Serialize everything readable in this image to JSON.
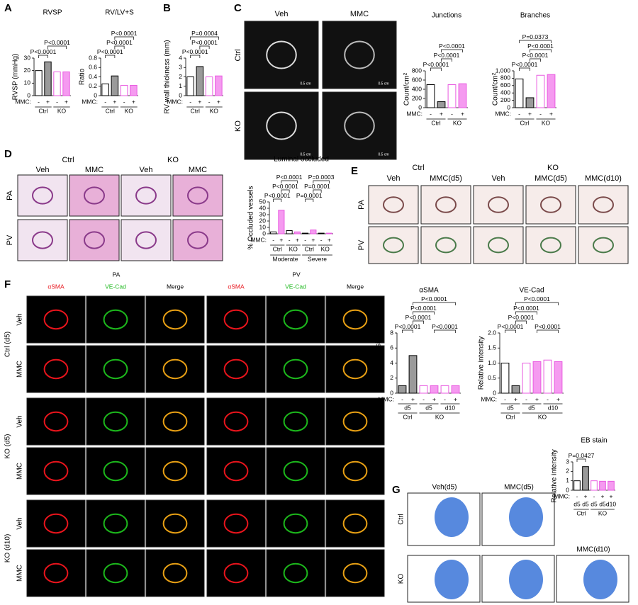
{
  "panel_labels": [
    "A",
    "B",
    "C",
    "D",
    "E",
    "F",
    "G"
  ],
  "images": {
    "C": {
      "columns": [
        "Veh",
        "MMC"
      ],
      "rows": [
        "Ctrl",
        "KO"
      ],
      "scale_bar": "0.5 cm"
    },
    "D": {
      "groups": [
        "Ctrl",
        "KO"
      ],
      "columns": [
        "Veh",
        "MMC",
        "Veh",
        "MMC"
      ],
      "rows": [
        "PA",
        "PV"
      ]
    },
    "E": {
      "groups": [
        "Ctrl",
        "KO"
      ],
      "columns": [
        "Veh",
        "MMC(d5)",
        "Veh",
        "MMC(d5)",
        "MMC(d10)"
      ],
      "rows": [
        "PA",
        "PV"
      ]
    },
    "F": {
      "groups": [
        "PA",
        "PV"
      ],
      "columns": [
        "αSMA",
        "VE-Cad",
        "Merge",
        "αSMA",
        "VE-Cad",
        "Merge"
      ],
      "row_groups": [
        "Ctrl (d5)",
        "KO (d5)",
        "KO (d10)"
      ],
      "rows": [
        "Veh",
        "MMC"
      ]
    },
    "G": {
      "columns": [
        "Veh(d5)",
        "MMC(d5)",
        "MMC(d10)"
      ],
      "rows": [
        "Ctrl",
        "KO"
      ]
    }
  },
  "chart_data": [
    {
      "type": "bar",
      "title": "RVSP",
      "y_label": "RVSP (mmHg)",
      "x_prefix": "MMC:",
      "categories": [
        "-",
        "+",
        "-",
        "+"
      ],
      "groups": [
        "Ctrl",
        "KO"
      ],
      "values": [
        20,
        27,
        19,
        19
      ],
      "colors": [
        "#ffffff",
        "#9a9a9a",
        "#ffffff",
        "#f59af0"
      ],
      "edge_colors": [
        "#000000",
        "#000000",
        "#e85ae0",
        "#e85ae0"
      ],
      "ylim": [
        0,
        30
      ],
      "yticks": [
        0,
        10,
        20,
        30
      ],
      "annotations": [
        "P<0.0001",
        "P<0.0001"
      ]
    },
    {
      "type": "bar",
      "title": "RV/LV+S",
      "y_label": "Ratio",
      "x_prefix": "MMC:",
      "categories": [
        "-",
        "+",
        "-",
        "+"
      ],
      "groups": [
        "Ctrl",
        "KO"
      ],
      "values": [
        0.25,
        0.42,
        0.22,
        0.22
      ],
      "colors": [
        "#ffffff",
        "#9a9a9a",
        "#ffffff",
        "#f59af0"
      ],
      "edge_colors": [
        "#000000",
        "#000000",
        "#e85ae0",
        "#e85ae0"
      ],
      "ylim": [
        0,
        0.8
      ],
      "yticks": [
        0,
        0.2,
        0.4,
        0.6,
        0.8
      ],
      "annotations": [
        "P<0.0001",
        "P<0.0001",
        "P<0.0001"
      ]
    },
    {
      "type": "bar",
      "y_label": "RV wall thickness (mm)",
      "x_prefix": "MMC:",
      "categories": [
        "-",
        "+",
        "-",
        "+"
      ],
      "groups": [
        "Ctrl",
        "KO"
      ],
      "values": [
        2,
        3.1,
        2,
        2.1
      ],
      "colors": [
        "#ffffff",
        "#9a9a9a",
        "#ffffff",
        "#f59af0"
      ],
      "edge_colors": [
        "#000000",
        "#000000",
        "#e85ae0",
        "#e85ae0"
      ],
      "ylim": [
        0,
        4
      ],
      "yticks": [
        0,
        1,
        2,
        3,
        4
      ],
      "annotations": [
        "P<0.0001",
        "P<0.0001",
        "P=0.0004"
      ]
    },
    {
      "type": "bar",
      "title": "Junctions",
      "y_label": "Count/cm²",
      "x_prefix": "MMC:",
      "categories": [
        "-",
        "+",
        "-",
        "+"
      ],
      "groups": [
        "Ctrl",
        "KO"
      ],
      "values": [
        500,
        130,
        500,
        520
      ],
      "colors": [
        "#ffffff",
        "#9a9a9a",
        "#ffffff",
        "#f59af0"
      ],
      "edge_colors": [
        "#000000",
        "#000000",
        "#e85ae0",
        "#e85ae0"
      ],
      "ylim": [
        0,
        800
      ],
      "yticks": [
        0,
        200,
        400,
        600,
        800
      ],
      "annotations": [
        "P<0.0001",
        "P<0.0001",
        "P<0.0001"
      ]
    },
    {
      "type": "bar",
      "title": "Branches",
      "y_label": "Count/cm²",
      "x_prefix": "MMC:",
      "categories": [
        "-",
        "+",
        "-",
        "+"
      ],
      "groups": [
        "Ctrl",
        "KO"
      ],
      "values": [
        780,
        270,
        880,
        900
      ],
      "colors": [
        "#ffffff",
        "#9a9a9a",
        "#ffffff",
        "#f59af0"
      ],
      "edge_colors": [
        "#000000",
        "#000000",
        "#e85ae0",
        "#e85ae0"
      ],
      "ylim": [
        0,
        1000
      ],
      "yticks": [
        0,
        200,
        400,
        600,
        800,
        {
          "value": 1000,
          "label": "1,000"
        }
      ],
      "annotations": [
        "P<0.0001",
        "P<0.0001",
        "P<0.0001",
        "P=0.0373"
      ]
    },
    {
      "type": "bar",
      "title": "Luminal occluded",
      "y_label": "% Occluded vessels",
      "x_prefix": "MMC:",
      "categories": [
        "-",
        "+",
        "-",
        "+",
        "-",
        "+",
        "-",
        "+"
      ],
      "groups": [
        "Ctrl",
        "KO",
        "Ctrl",
        "KO"
      ],
      "supergroups": [
        "Moderate",
        "Severe"
      ],
      "values": [
        3,
        37,
        5,
        3,
        1,
        6,
        1,
        1
      ],
      "colors": [
        "#ffffff",
        "#f59af0",
        "#ffffff",
        "#f59af0",
        "#ffffff",
        "#f59af0",
        "#ffffff",
        "#f59af0"
      ],
      "edge_colors": [
        "#000000",
        "#e85ae0",
        "#000000",
        "#e85ae0",
        "#000000",
        "#e85ae0",
        "#000000",
        "#e85ae0"
      ],
      "ylim": [
        0,
        50
      ],
      "yticks": [
        0,
        10,
        20,
        30,
        40,
        50
      ],
      "annotations": [
        "P<0.0001",
        "P<0.0001",
        "P<0.0001",
        "P=0.0001",
        "P=0.0001",
        "P=0.0003"
      ]
    },
    {
      "type": "bar",
      "title": "αSMA",
      "y_label": "Relative intensity",
      "x_prefix": "MMC:",
      "categories": [
        "-",
        "+",
        "-",
        "+",
        "-",
        "+"
      ],
      "subgroups": [
        "d5",
        "d5",
        "d10"
      ],
      "groups": [
        "Ctrl",
        "KO"
      ],
      "values": [
        1,
        5,
        1,
        1,
        1,
        1
      ],
      "colors": [
        "#9a9a9a",
        "#9a9a9a",
        "#ffffff",
        "#f59af0",
        "#ffffff",
        "#f59af0"
      ],
      "edge_colors": [
        "#000000",
        "#000000",
        "#e85ae0",
        "#e85ae0",
        "#e85ae0",
        "#e85ae0"
      ],
      "ylim": [
        0,
        8
      ],
      "yticks": [
        0,
        2,
        4,
        6,
        8
      ],
      "annotations": [
        "P<0.0001",
        "P<0.0001",
        "P<0.0001",
        "P<0.0001",
        "P<0.0001"
      ]
    },
    {
      "type": "bar",
      "title": "VE-Cad",
      "y_label": "Relative intensity",
      "x_prefix": "MMC:",
      "categories": [
        "-",
        "+",
        "-",
        "+",
        "-",
        "+"
      ],
      "subgroups": [
        "d5",
        "d5",
        "d10"
      ],
      "groups": [
        "Ctrl",
        "KO"
      ],
      "values": [
        1,
        0.25,
        1,
        1.05,
        1.1,
        1.05
      ],
      "colors": [
        "#ffffff",
        "#9a9a9a",
        "#ffffff",
        "#f59af0",
        "#ffffff",
        "#f59af0"
      ],
      "edge_colors": [
        "#000000",
        "#000000",
        "#e85ae0",
        "#e85ae0",
        "#e85ae0",
        "#e85ae0"
      ],
      "ylim": [
        0,
        2
      ],
      "yticks": [
        0,
        0.5,
        {
          "value": 1,
          "label": "1.0"
        },
        1.5,
        {
          "value": 2,
          "label": "2.0"
        }
      ],
      "annotations": [
        "P<0.0001",
        "P<0.0001",
        "P<0.0001",
        "P<0.0001",
        "P<0.0001"
      ]
    },
    {
      "type": "bar",
      "title": "EB stain",
      "y_label": "Relative intensity",
      "x_prefix": "MMC:",
      "categories": [
        "-",
        "+",
        "-",
        "+",
        "+"
      ],
      "bar_labels": [
        "d5",
        "d5",
        "d5",
        "d5",
        "d10"
      ],
      "groups": [
        "Ctrl",
        "KO"
      ],
      "values": [
        1,
        2.5,
        1,
        0.95,
        0.95
      ],
      "colors": [
        "#ffffff",
        "#9a9a9a",
        "#ffffff",
        "#f59af0",
        "#f59af0"
      ],
      "edge_colors": [
        "#000000",
        "#000000",
        "#e85ae0",
        "#e85ae0",
        "#e85ae0"
      ],
      "ylim": [
        0,
        3
      ],
      "yticks": [
        0,
        1,
        2,
        3
      ],
      "annotations": [
        "P=0.0427"
      ]
    }
  ]
}
